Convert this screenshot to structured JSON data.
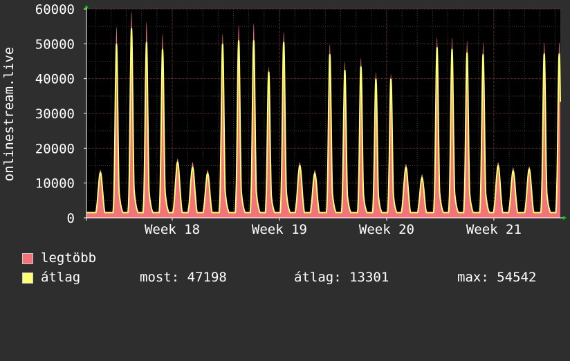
{
  "chart_data": {
    "type": "line",
    "ylabel": "onlinestream.live",
    "ylim": [
      0,
      60000
    ],
    "y_ticks": [
      0,
      10000,
      20000,
      30000,
      40000,
      50000,
      60000
    ],
    "y_tick_labels": [
      "0",
      "10000",
      "20000",
      "30000",
      "40000",
      "50000",
      "60000"
    ],
    "x_axis": {
      "unit": "week",
      "range": [
        17.2,
        21.62
      ],
      "tick_values": [
        18,
        19,
        20,
        21
      ],
      "tick_labels": [
        "Week 18",
        "Week 19",
        "Week 20",
        "Week 21"
      ]
    },
    "grid": true,
    "daily_peaks_week": [
      17.33,
      17.48,
      17.62,
      17.76,
      17.91,
      18.05,
      18.19,
      18.33,
      18.47,
      18.62,
      18.76,
      18.9,
      19.04,
      19.19,
      19.33,
      19.47,
      19.61,
      19.76,
      19.9,
      20.04,
      20.18,
      20.33,
      20.47,
      20.61,
      20.75,
      20.9,
      21.04,
      21.18,
      21.33,
      21.47,
      21.61
    ],
    "series": [
      {
        "name": "legtöbb",
        "color": "#f2737a",
        "daily_peaks": [
          13800,
          55000,
          59500,
          56500,
          53000,
          17000,
          16000,
          13800,
          53000,
          55500,
          56000,
          43500,
          53500,
          16000,
          13800,
          50000,
          45000,
          46000,
          42000,
          41500,
          15500,
          12500,
          52000,
          52000,
          51000,
          50500,
          16000,
          14500,
          14800,
          50500,
          50500
        ]
      },
      {
        "name": "átlag",
        "color": "#ffff73",
        "daily_peaks": [
          13000,
          50000,
          54500,
          50500,
          48500,
          16000,
          14500,
          12800,
          50000,
          51000,
          51000,
          42000,
          50500,
          15000,
          12800,
          47000,
          42500,
          43500,
          40000,
          40000,
          14500,
          11500,
          49000,
          48500,
          47500,
          47000,
          15000,
          13500,
          14000,
          47198,
          47198
        ]
      }
    ],
    "legend": {
      "position": "bottom-left",
      "items": [
        {
          "label": "legtöbb",
          "color": "#f2737a"
        },
        {
          "label": "átlag",
          "color": "#ffff73"
        }
      ],
      "stats": {
        "now": "most: 47198",
        "avg": "átlag: 13301",
        "max": "max: 54542"
      }
    }
  }
}
